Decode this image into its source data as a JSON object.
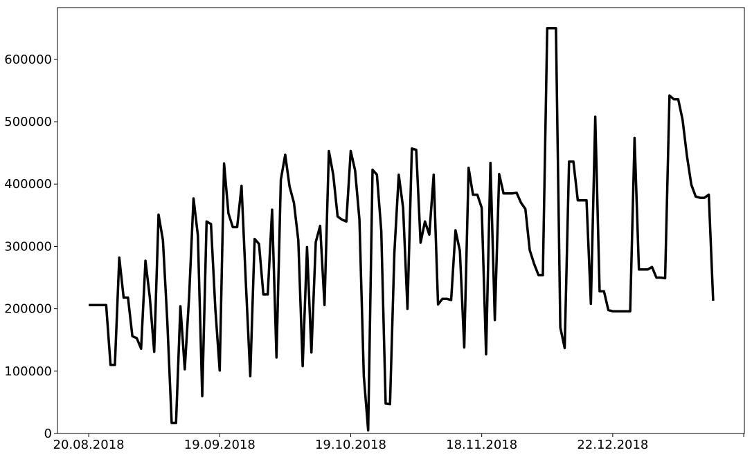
{
  "chart_data": {
    "type": "line",
    "x": [
      0,
      1,
      2,
      3,
      4,
      5,
      6,
      7,
      8,
      9,
      10,
      11,
      12,
      13,
      14,
      15,
      16,
      17,
      18,
      19,
      20,
      21,
      22,
      23,
      24,
      25,
      26,
      27,
      28,
      29,
      30,
      31,
      32,
      33,
      34,
      35,
      36,
      37,
      38,
      39,
      40,
      41,
      42,
      43,
      44,
      45,
      46,
      47,
      48,
      49,
      50,
      51,
      52,
      53,
      54,
      55,
      56,
      57,
      58,
      59,
      60,
      61,
      62,
      63,
      64,
      65,
      66,
      67,
      68,
      69,
      70,
      71,
      72,
      73,
      74,
      75,
      76,
      77,
      78,
      79,
      80,
      81,
      82,
      83,
      84,
      85,
      86,
      87,
      88,
      89,
      90,
      91,
      92,
      93,
      94,
      95,
      96,
      97,
      98,
      99,
      100,
      101,
      102,
      103,
      104,
      105,
      106,
      107,
      108,
      109,
      110,
      111,
      112,
      113,
      114,
      115,
      116,
      117,
      118,
      119,
      120,
      121,
      122,
      123,
      124,
      125,
      126,
      127,
      128,
      129,
      130,
      131,
      132,
      133,
      134,
      135,
      136,
      137,
      138,
      139,
      140,
      141,
      142,
      143
    ],
    "values": [
      206000,
      206000,
      206000,
      206000,
      206000,
      110000,
      110000,
      282000,
      218000,
      218000,
      156000,
      153000,
      136000,
      277000,
      218000,
      131000,
      351000,
      310000,
      180000,
      17000,
      17000,
      204000,
      103000,
      220000,
      377000,
      318000,
      60000,
      340000,
      336000,
      200000,
      101000,
      433000,
      353000,
      331000,
      331000,
      397000,
      240000,
      92000,
      312000,
      304000,
      223000,
      223000,
      359000,
      122000,
      407000,
      447000,
      396000,
      370000,
      310000,
      108000,
      299000,
      130000,
      307000,
      333000,
      206000,
      453000,
      415000,
      348000,
      343000,
      340000,
      453000,
      422000,
      343000,
      92000,
      5000,
      423000,
      415000,
      325000,
      48000,
      47000,
      290000,
      415000,
      362000,
      200000,
      457000,
      455000,
      306000,
      340000,
      319000,
      415000,
      207000,
      216000,
      216000,
      214000,
      326000,
      293000,
      138000,
      426000,
      383000,
      383000,
      362000,
      127000,
      434000,
      182000,
      416000,
      385000,
      385000,
      385000,
      386000,
      370000,
      360000,
      294000,
      272000,
      254000,
      254000,
      650000,
      650000,
      650000,
      170000,
      137000,
      436000,
      436000,
      374000,
      374000,
      374000,
      208000,
      508000,
      228000,
      228000,
      198000,
      196000,
      196000,
      196000,
      196000,
      196000,
      474000,
      263000,
      263000,
      263000,
      267000,
      250000,
      250000,
      249000,
      542000,
      536000,
      536000,
      503000,
      445000,
      399000,
      380000,
      378000,
      378000,
      383000,
      213000
    ],
    "color": "#000000",
    "xlim": [
      -7.15,
      150.15
    ],
    "xticks": [
      {
        "value": 0,
        "label": "20.08.2018"
      },
      {
        "value": 30,
        "label": "19.09.2018"
      },
      {
        "value": 60,
        "label": "19.10.2018"
      },
      {
        "value": 90,
        "label": "18.11.2018"
      },
      {
        "value": 120,
        "label": "22.12.2018"
      },
      {
        "value": 150,
        "label": null
      }
    ],
    "ylim": [
      0,
      683000
    ],
    "yticks": [
      0,
      100000,
      200000,
      300000,
      400000,
      500000,
      600000
    ],
    "grid": false
  }
}
